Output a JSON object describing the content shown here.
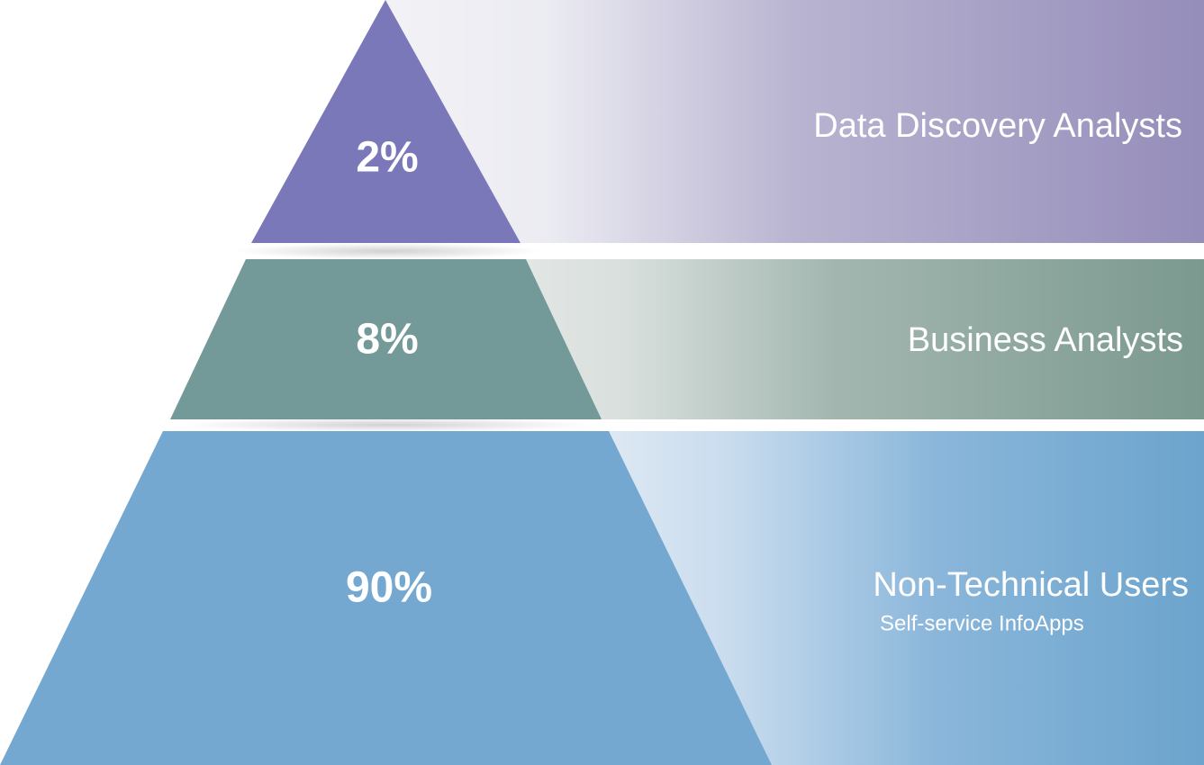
{
  "tiers": [
    {
      "percent": "2%",
      "label": "Data Discovery Analysts"
    },
    {
      "percent": "8%",
      "label": "Business Analysts"
    },
    {
      "percent": "90%",
      "label": "Non-Technical Users",
      "sublabel": "Self-service InfoApps"
    }
  ]
}
